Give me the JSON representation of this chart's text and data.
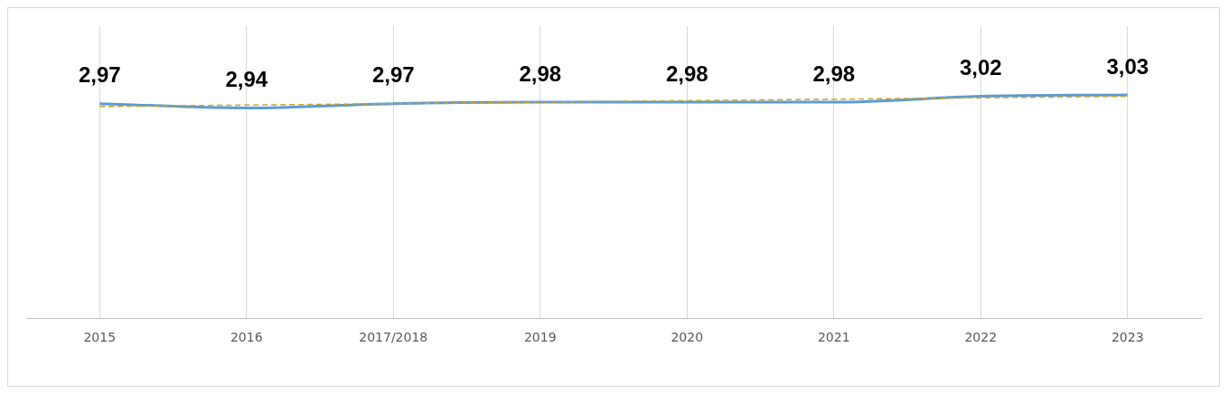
{
  "chart_data": {
    "type": "line",
    "categories": [
      "2015",
      "2016",
      "2017/2018",
      "2019",
      "2020",
      "2021",
      "2022",
      "2023"
    ],
    "series": [
      {
        "color": "#5b9bd5",
        "values": [
          2.97,
          2.94,
          2.97,
          2.98,
          2.98,
          2.98,
          3.02,
          3.03
        ],
        "value_labels": [
          "2,97",
          "2,94",
          "2,97",
          "2,98",
          "2,98",
          "2,98",
          "3,02",
          "3,03"
        ]
      },
      {
        "type": "line",
        "color": "#c9a227",
        "line_style": "dashed",
        "values": [
          2.95,
          2.96,
          2.97,
          2.98,
          2.99,
          3.0,
          3.01,
          3.02
        ]
      }
    ],
    "grid": "x",
    "legend": false,
    "marker": "none"
  }
}
